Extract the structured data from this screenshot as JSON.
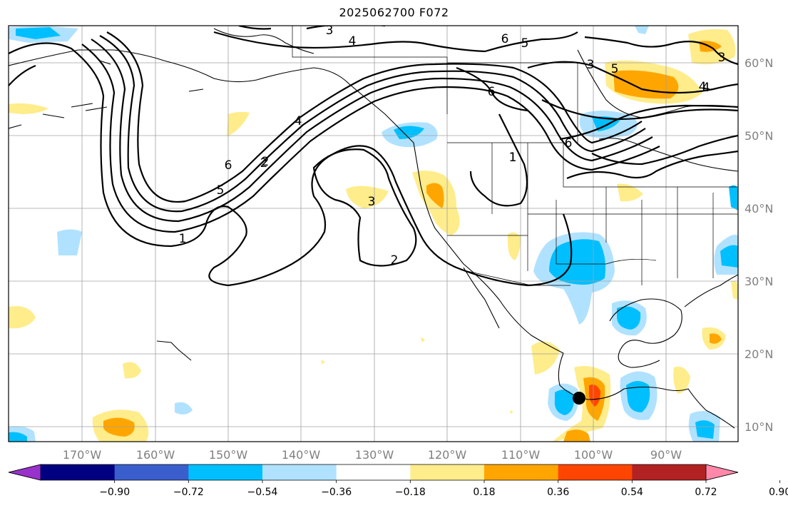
{
  "title": "2025062700 F072",
  "map": {
    "lon_labels": [
      "170°W",
      "160°W",
      "150°W",
      "140°W",
      "130°W",
      "120°W",
      "110°W",
      "100°W",
      "90°W"
    ],
    "lat_labels": [
      "60°N",
      "50°N",
      "40°N",
      "30°N",
      "20°N",
      "10°N"
    ],
    "contour_labels": [
      "3",
      "4",
      "6",
      "5",
      "6",
      "4",
      "1",
      "2",
      "3",
      "2",
      "1",
      "2",
      "6",
      "5",
      "4",
      "3",
      "5",
      "6",
      "3",
      "4",
      "1"
    ],
    "storm_marker": "tropical system center"
  },
  "colorbar": {
    "tick_labels": [
      "−0.90",
      "−0.72",
      "−0.54",
      "−0.36",
      "−0.18",
      "0.18",
      "0.36",
      "0.54",
      "0.72",
      "0.90"
    ],
    "colors": [
      "#9932cc",
      "#000080",
      "#3a5fcd",
      "#00bfff",
      "#b0e2ff",
      "#ffffff",
      "#ffec8b",
      "#ffa500",
      "#ff4500",
      "#b22222",
      "#ff88aa"
    ]
  }
}
